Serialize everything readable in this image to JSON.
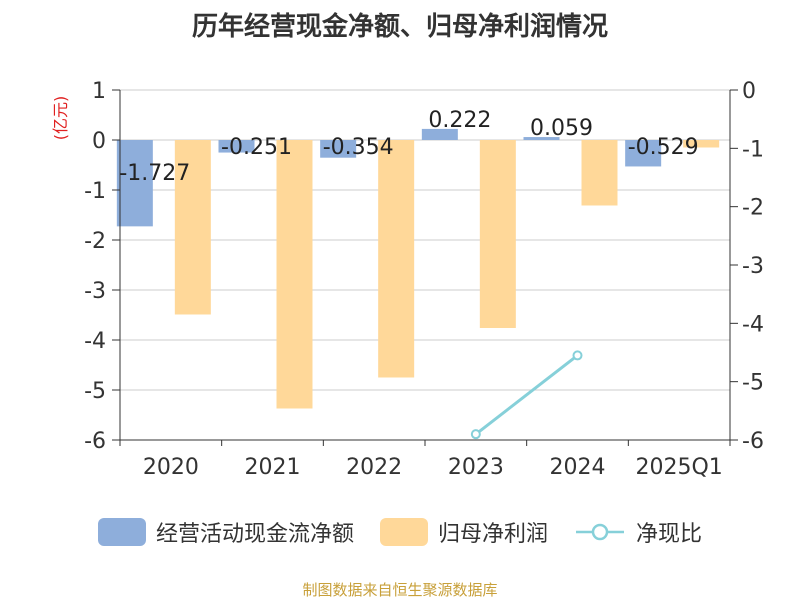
{
  "chart_data": {
    "type": "bar",
    "title": "历年经营现金净额、归母净利润情况",
    "ylabel": "(亿元)",
    "y2label": "",
    "categories": [
      "2020",
      "2021",
      "2022",
      "2023",
      "2024",
      "2025Q1"
    ],
    "ylim": [
      -6,
      1
    ],
    "y2lim": [
      -6,
      0
    ],
    "yticks": [
      1,
      0,
      -1,
      -2,
      -3,
      -4,
      -5,
      -6
    ],
    "y2ticks": [
      0,
      -1,
      -2,
      -3,
      -4,
      -5,
      -6
    ],
    "ytick_labels": [
      "1",
      "0",
      "-1",
      "-2",
      "-3",
      "-4",
      "-5",
      "-6"
    ],
    "y2tick_labels": [
      "0",
      "-1",
      "-2",
      "-3",
      "-4",
      "-5",
      "-6"
    ],
    "grid": true,
    "legend_position": "bottom",
    "series": [
      {
        "name": "经营活动现金流净额",
        "type": "bar",
        "axis": "left",
        "values": [
          -1.727,
          -0.251,
          -0.354,
          0.222,
          0.059,
          -0.529
        ],
        "labels": [
          "-1.727",
          "-0.251",
          "-0.354",
          "0.222",
          "0.059",
          "-0.529"
        ],
        "color": "#8eaedb"
      },
      {
        "name": "归母净利润",
        "type": "bar",
        "axis": "left",
        "values": [
          -3.49,
          -5.37,
          -4.75,
          -3.76,
          -1.31,
          -0.15
        ],
        "color": "#ffd899"
      },
      {
        "name": "净现比",
        "type": "line",
        "axis": "right",
        "values": [
          null,
          null,
          null,
          -5.9,
          -4.55,
          null
        ],
        "color": "#86d0d9"
      }
    ]
  },
  "source": "制图数据来自恒生聚源数据库"
}
